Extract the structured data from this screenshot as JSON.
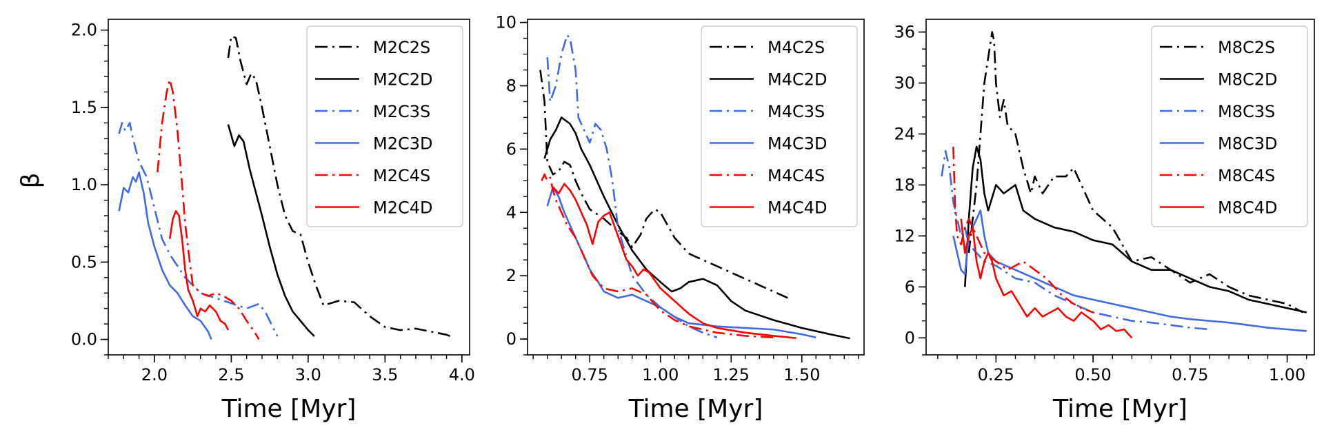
{
  "figure": {
    "ylabel": "β",
    "xlabel": "Time [Myr]"
  },
  "chart_data": [
    {
      "type": "line",
      "xlabel": "Time [Myr]",
      "ylabel": "β",
      "xlim": [
        1.7,
        4.05
      ],
      "ylim": [
        -0.1,
        2.07
      ],
      "xticks": [
        2.0,
        2.5,
        3.0,
        3.5,
        4.0
      ],
      "xtick_labels": [
        "2.0",
        "2.5",
        "3.0",
        "3.5",
        "4.0"
      ],
      "yticks": [
        0.0,
        0.5,
        1.0,
        1.5,
        2.0
      ],
      "ytick_labels": [
        "0.0",
        "0.5",
        "1.0",
        "1.5",
        "2.0"
      ],
      "xminor": 0.1,
      "yminor": 0.1,
      "legend": "top-right",
      "series": [
        {
          "name": "M2C2S",
          "color": "#000000",
          "style": "dashdot",
          "x": [
            2.48,
            2.5,
            2.53,
            2.56,
            2.6,
            2.63,
            2.66,
            2.7,
            2.75,
            2.8,
            2.85,
            2.9,
            2.95,
            3.0,
            3.05,
            3.1,
            3.2,
            3.3,
            3.4,
            3.5,
            3.6,
            3.7,
            3.8,
            3.9,
            3.95
          ],
          "y": [
            1.82,
            1.96,
            1.95,
            1.8,
            1.65,
            1.72,
            1.68,
            1.5,
            1.25,
            1.0,
            0.8,
            0.7,
            0.68,
            0.5,
            0.35,
            0.22,
            0.25,
            0.24,
            0.15,
            0.08,
            0.06,
            0.07,
            0.05,
            0.03,
            0.01
          ]
        },
        {
          "name": "M2C2D",
          "color": "#000000",
          "style": "solid",
          "x": [
            2.48,
            2.52,
            2.55,
            2.58,
            2.62,
            2.66,
            2.7,
            2.75,
            2.8,
            2.85,
            2.9,
            2.95,
            3.0,
            3.04
          ],
          "y": [
            1.39,
            1.25,
            1.32,
            1.28,
            1.1,
            0.95,
            0.8,
            0.6,
            0.42,
            0.28,
            0.18,
            0.12,
            0.06,
            0.02
          ]
        },
        {
          "name": "M2C3S",
          "color": "#4169e1",
          "style": "dashdot",
          "x": [
            1.77,
            1.79,
            1.81,
            1.84,
            1.86,
            1.9,
            1.95,
            2.0,
            2.05,
            2.1,
            2.2,
            2.3,
            2.45,
            2.6,
            2.68,
            2.72,
            2.76,
            2.8
          ],
          "y": [
            1.33,
            1.4,
            1.35,
            1.4,
            1.3,
            1.15,
            1.05,
            0.85,
            0.65,
            0.55,
            0.4,
            0.3,
            0.25,
            0.2,
            0.23,
            0.18,
            0.1,
            0.02
          ]
        },
        {
          "name": "M2C3D",
          "color": "#4169e1",
          "style": "solid",
          "x": [
            1.77,
            1.8,
            1.83,
            1.86,
            1.88,
            1.9,
            1.93,
            1.96,
            2.0,
            2.05,
            2.1,
            2.15,
            2.2,
            2.25,
            2.3,
            2.35,
            2.37
          ],
          "y": [
            0.83,
            0.98,
            0.95,
            1.05,
            1.02,
            1.08,
            0.95,
            0.75,
            0.6,
            0.45,
            0.35,
            0.3,
            0.22,
            0.15,
            0.12,
            0.05,
            0.0
          ]
        },
        {
          "name": "M2C4S",
          "color": "#ff0000",
          "style": "dashdot",
          "x": [
            2.02,
            2.05,
            2.08,
            2.1,
            2.12,
            2.15,
            2.18,
            2.2,
            2.23,
            2.25,
            2.3,
            2.35,
            2.4,
            2.45,
            2.5,
            2.55,
            2.6,
            2.65,
            2.68
          ],
          "y": [
            1.08,
            1.4,
            1.6,
            1.68,
            1.6,
            1.35,
            1.0,
            0.75,
            0.5,
            0.35,
            0.3,
            0.28,
            0.3,
            0.28,
            0.25,
            0.2,
            0.12,
            0.05,
            0.0
          ]
        },
        {
          "name": "M2C4D",
          "color": "#ff0000",
          "style": "solid",
          "x": [
            2.1,
            2.12,
            2.14,
            2.16,
            2.18,
            2.2,
            2.22,
            2.25,
            2.28,
            2.3,
            2.33,
            2.36,
            2.4,
            2.43,
            2.46,
            2.48
          ],
          "y": [
            0.65,
            0.78,
            0.83,
            0.8,
            0.65,
            0.45,
            0.32,
            0.25,
            0.15,
            0.2,
            0.18,
            0.22,
            0.18,
            0.12,
            0.1,
            0.06
          ]
        }
      ]
    },
    {
      "type": "line",
      "xlabel": "Time [Myr]",
      "ylabel": "",
      "xlim": [
        0.53,
        1.72
      ],
      "ylim": [
        -0.5,
        10.1
      ],
      "xticks": [
        0.75,
        1.0,
        1.25,
        1.5
      ],
      "xtick_labels": [
        "0.75",
        "1.00",
        "1.25",
        "1.50"
      ],
      "yticks": [
        0,
        2,
        4,
        6,
        8,
        10
      ],
      "ytick_labels": [
        "0",
        "2",
        "4",
        "6",
        "8",
        "10"
      ],
      "xminor": 0.05,
      "yminor": 0.5,
      "legend": "top-right",
      "series": [
        {
          "name": "M4C2S",
          "color": "#000000",
          "style": "dashdot",
          "x": [
            0.575,
            0.59,
            0.6,
            0.62,
            0.64,
            0.66,
            0.68,
            0.7,
            0.72,
            0.75,
            0.8,
            0.85,
            0.88,
            0.9,
            0.93,
            0.95,
            0.98,
            1.0,
            1.05,
            1.1,
            1.15,
            1.2,
            1.25,
            1.3,
            1.35,
            1.4,
            1.45
          ],
          "y": [
            8.5,
            7.5,
            5.6,
            5.2,
            5.3,
            5.6,
            5.5,
            5.0,
            4.6,
            4.1,
            3.8,
            3.4,
            3.2,
            2.9,
            3.3,
            3.8,
            4.1,
            4.0,
            3.2,
            2.7,
            2.5,
            2.3,
            2.1,
            1.9,
            1.7,
            1.5,
            1.3
          ]
        },
        {
          "name": "M4C2D",
          "color": "#000000",
          "style": "solid",
          "x": [
            0.59,
            0.61,
            0.63,
            0.65,
            0.68,
            0.7,
            0.72,
            0.75,
            0.8,
            0.85,
            0.9,
            0.95,
            1.0,
            1.04,
            1.07,
            1.1,
            1.15,
            1.2,
            1.25,
            1.3,
            1.4,
            1.5,
            1.6,
            1.67
          ],
          "y": [
            5.7,
            6.3,
            6.6,
            7.0,
            6.8,
            6.5,
            6.0,
            5.5,
            4.5,
            3.6,
            2.8,
            2.2,
            1.8,
            1.5,
            1.6,
            1.8,
            1.9,
            1.7,
            1.2,
            0.9,
            0.6,
            0.35,
            0.15,
            0.02
          ]
        },
        {
          "name": "M4C3S",
          "color": "#4169e1",
          "style": "dashdot",
          "x": [
            0.6,
            0.61,
            0.63,
            0.65,
            0.67,
            0.68,
            0.7,
            0.71,
            0.73,
            0.75,
            0.77,
            0.79,
            0.81,
            0.83,
            0.85,
            0.9,
            0.95,
            1.0,
            1.05,
            1.1,
            1.15,
            1.2
          ],
          "y": [
            8.9,
            7.5,
            8.0,
            9.0,
            9.6,
            9.5,
            8.5,
            7.0,
            6.6,
            6.2,
            6.8,
            6.6,
            6.0,
            5.0,
            3.5,
            2.0,
            1.4,
            1.0,
            0.7,
            0.4,
            0.2,
            0.05
          ]
        },
        {
          "name": "M4C3D",
          "color": "#4169e1",
          "style": "solid",
          "x": [
            0.6,
            0.62,
            0.64,
            0.66,
            0.68,
            0.7,
            0.72,
            0.75,
            0.78,
            0.8,
            0.85,
            0.9,
            0.95,
            1.0,
            1.05,
            1.1,
            1.2,
            1.3,
            1.4,
            1.5,
            1.55
          ],
          "y": [
            4.2,
            4.8,
            4.5,
            4.0,
            3.6,
            3.2,
            2.8,
            2.2,
            1.8,
            1.5,
            1.3,
            1.4,
            1.2,
            1.0,
            0.7,
            0.5,
            0.4,
            0.35,
            0.3,
            0.15,
            0.05
          ]
        },
        {
          "name": "M4C4S",
          "color": "#ff0000",
          "style": "dashdot",
          "x": [
            0.58,
            0.59,
            0.6,
            0.61,
            0.62,
            0.63,
            0.65,
            0.67,
            0.7,
            0.73,
            0.76,
            0.8,
            0.85,
            0.9,
            0.95,
            1.0,
            1.05,
            1.1,
            1.2,
            1.3,
            1.4
          ],
          "y": [
            5.0,
            5.2,
            5.0,
            5.1,
            4.7,
            4.4,
            4.0,
            3.6,
            3.2,
            2.6,
            2.0,
            1.6,
            1.5,
            1.6,
            1.4,
            0.9,
            0.6,
            0.4,
            0.2,
            0.1,
            0.05
          ]
        },
        {
          "name": "M4C4D",
          "color": "#ff0000",
          "style": "solid",
          "x": [
            0.62,
            0.64,
            0.66,
            0.68,
            0.7,
            0.72,
            0.74,
            0.76,
            0.78,
            0.8,
            0.82,
            0.84,
            0.86,
            0.88,
            0.9,
            0.92,
            0.94,
            0.96,
            1.0,
            1.05,
            1.1,
            1.15,
            1.2,
            1.3,
            1.4,
            1.48
          ],
          "y": [
            4.8,
            4.6,
            4.9,
            4.7,
            4.4,
            4.0,
            3.6,
            3.0,
            3.7,
            3.9,
            4.0,
            3.5,
            3.0,
            2.5,
            2.3,
            2.0,
            2.2,
            2.1,
            1.6,
            1.2,
            0.8,
            0.5,
            0.35,
            0.2,
            0.1,
            0.03
          ]
        }
      ]
    },
    {
      "type": "line",
      "xlabel": "Time [Myr]",
      "ylabel": "",
      "xlim": [
        0.07,
        1.07
      ],
      "ylim": [
        -2,
        37.5
      ],
      "xticks": [
        0.25,
        0.5,
        0.75,
        1.0
      ],
      "xtick_labels": [
        "0.25",
        "0.50",
        "0.75",
        "1.00"
      ],
      "yticks": [
        0,
        6,
        12,
        18,
        24,
        30,
        36
      ],
      "ytick_labels": [
        "0",
        "6",
        "12",
        "18",
        "24",
        "30",
        "36"
      ],
      "xminor": 0.05,
      "yminor": 2,
      "legend": "top-right",
      "series": [
        {
          "name": "M8C2S",
          "color": "#000000",
          "style": "dashdot",
          "x": [
            0.18,
            0.2,
            0.21,
            0.22,
            0.23,
            0.24,
            0.245,
            0.25,
            0.26,
            0.27,
            0.28,
            0.3,
            0.32,
            0.34,
            0.35,
            0.37,
            0.4,
            0.43,
            0.45,
            0.47,
            0.5,
            0.55,
            0.6,
            0.65,
            0.7,
            0.75,
            0.8,
            0.85,
            0.9,
            0.95,
            1.0,
            1.04
          ],
          "y": [
            10.0,
            18.0,
            24.0,
            30.0,
            33.0,
            36.0,
            35.0,
            30.0,
            26.0,
            28.0,
            25.0,
            24.0,
            20.0,
            17.0,
            19.0,
            17.0,
            19.0,
            19.0,
            20.0,
            18.0,
            15.0,
            13.0,
            9.0,
            9.5,
            8.0,
            6.5,
            7.5,
            6.0,
            5.0,
            4.5,
            4.0,
            3.0
          ]
        },
        {
          "name": "M8C2D",
          "color": "#000000",
          "style": "solid",
          "x": [
            0.17,
            0.18,
            0.19,
            0.2,
            0.21,
            0.22,
            0.23,
            0.25,
            0.27,
            0.3,
            0.32,
            0.35,
            0.4,
            0.45,
            0.5,
            0.55,
            0.6,
            0.65,
            0.7,
            0.75,
            0.8,
            0.85,
            0.9,
            0.95,
            1.0,
            1.05
          ],
          "y": [
            6.0,
            14.0,
            20.0,
            22.5,
            21.0,
            17.0,
            15.0,
            18.0,
            17.0,
            18.0,
            15.0,
            14.0,
            13.0,
            12.5,
            11.5,
            11.0,
            9.0,
            8.0,
            8.0,
            7.0,
            6.0,
            5.5,
            4.5,
            4.0,
            3.5,
            3.0
          ]
        },
        {
          "name": "M8C3S",
          "color": "#4169e1",
          "style": "dashdot",
          "x": [
            0.11,
            0.12,
            0.13,
            0.14,
            0.15,
            0.16,
            0.17,
            0.18,
            0.2,
            0.22,
            0.25,
            0.3,
            0.35,
            0.4,
            0.45,
            0.5,
            0.55,
            0.6,
            0.65,
            0.7,
            0.75,
            0.8
          ],
          "y": [
            19.0,
            22.0,
            20.0,
            16.0,
            14.0,
            12.0,
            13.0,
            11.0,
            10.0,
            9.0,
            8.5,
            7.0,
            6.5,
            5.0,
            4.0,
            3.0,
            2.5,
            2.0,
            1.8,
            1.5,
            1.2,
            1.0
          ]
        },
        {
          "name": "M8C3D",
          "color": "#4169e1",
          "style": "solid",
          "x": [
            0.14,
            0.15,
            0.16,
            0.17,
            0.18,
            0.19,
            0.2,
            0.21,
            0.22,
            0.23,
            0.25,
            0.3,
            0.35,
            0.4,
            0.45,
            0.5,
            0.55,
            0.6,
            0.65,
            0.7,
            0.75,
            0.8,
            0.85,
            0.9,
            0.95,
            1.0,
            1.05
          ],
          "y": [
            12.0,
            10.0,
            8.0,
            7.5,
            12.0,
            13.0,
            14.0,
            15.0,
            12.0,
            10.0,
            9.0,
            8.0,
            7.0,
            6.0,
            5.0,
            4.5,
            4.0,
            3.5,
            3.0,
            2.5,
            2.2,
            2.0,
            1.8,
            1.5,
            1.2,
            1.0,
            0.8
          ]
        },
        {
          "name": "M8C4S",
          "color": "#ff0000",
          "style": "dashdot",
          "x": [
            0.14,
            0.145,
            0.15,
            0.16,
            0.17,
            0.18,
            0.19,
            0.2,
            0.22,
            0.25,
            0.28,
            0.3,
            0.32,
            0.35,
            0.38,
            0.4,
            0.42,
            0.45,
            0.47,
            0.5
          ],
          "y": [
            22.5,
            15.0,
            12.0,
            11.0,
            13.0,
            14.0,
            13.0,
            12.0,
            10.0,
            9.0,
            8.0,
            8.5,
            9.0,
            8.0,
            7.0,
            6.0,
            5.0,
            4.0,
            3.5,
            3.0
          ]
        },
        {
          "name": "M8C4D",
          "color": "#ff0000",
          "style": "solid",
          "x": [
            0.16,
            0.17,
            0.18,
            0.19,
            0.2,
            0.21,
            0.22,
            0.23,
            0.24,
            0.25,
            0.27,
            0.29,
            0.31,
            0.33,
            0.35,
            0.37,
            0.39,
            0.41,
            0.43,
            0.45,
            0.47,
            0.5,
            0.52,
            0.54,
            0.56,
            0.58,
            0.6
          ],
          "y": [
            14.0,
            10.0,
            12.0,
            13.0,
            9.0,
            7.0,
            9.0,
            10.0,
            9.0,
            7.0,
            5.0,
            5.5,
            4.0,
            2.5,
            3.5,
            2.5,
            3.0,
            3.5,
            2.5,
            2.0,
            3.0,
            2.0,
            1.0,
            1.5,
            0.8,
            1.0,
            0.0
          ]
        }
      ]
    }
  ]
}
